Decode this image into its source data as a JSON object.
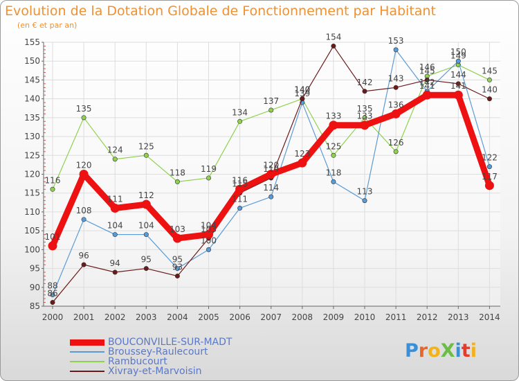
{
  "header": {
    "title": "Evolution de la Dotation Globale de Fonctionnement par Habitant",
    "subtitle": "(en € et par an)"
  },
  "logo": {
    "text": "ProXiti",
    "colors": [
      "#3a8fd8",
      "#e8662a",
      "#f2b21b",
      "#6cbd45",
      "#3a8fd8",
      "#e83a2a",
      "#f2b21b"
    ]
  },
  "chart_data": {
    "type": "line",
    "x": [
      "2000",
      "2001",
      "2002",
      "2003",
      "2004",
      "2005",
      "2006",
      "2007",
      "2008",
      "2009",
      "2010",
      "2011",
      "2012",
      "2013",
      "2014"
    ],
    "ylim": [
      85,
      155
    ],
    "yticks": [
      85,
      90,
      95,
      100,
      105,
      110,
      115,
      120,
      125,
      130,
      135,
      140,
      145,
      150,
      155
    ],
    "grid": true,
    "legend_position": "bottom-left",
    "series": [
      {
        "name": "BOUCONVILLE-SUR-MADT",
        "color": "#ee1111",
        "values": [
          101,
          120,
          111,
          112,
          103,
          104,
          116,
          120,
          123,
          133,
          133,
          136,
          141,
          141,
          117
        ]
      },
      {
        "name": "Broussey-Raulecourt",
        "color": "#5b9bd5",
        "values": [
          88,
          108,
          104,
          104,
          95,
          100,
          111,
          114,
          139,
          118,
          113,
          153,
          142,
          150,
          122
        ]
      },
      {
        "name": "Rambucourt",
        "color": "#8fd14f",
        "values": [
          116,
          135,
          124,
          125,
          118,
          119,
          134,
          137,
          140,
          125,
          135,
          126,
          146,
          149,
          145
        ]
      },
      {
        "name": "Xivray-et-Marvoisin",
        "color": "#6b1a1a",
        "values": [
          86,
          96,
          94,
          95,
          93,
          103,
          115,
          119,
          140,
          154,
          142,
          143,
          145,
          144,
          140
        ]
      }
    ]
  }
}
